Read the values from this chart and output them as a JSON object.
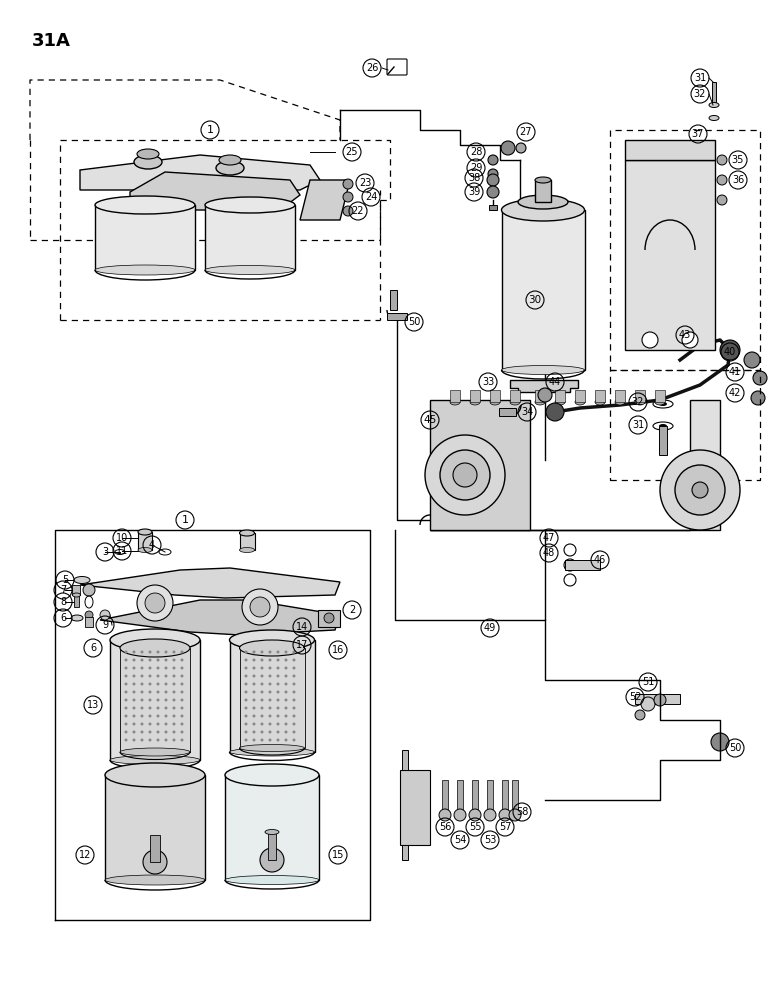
{
  "page_label": "31A",
  "bg": "#ffffff",
  "fg": "#000000",
  "figsize": [
    7.8,
    10.0
  ],
  "dpi": 100
}
